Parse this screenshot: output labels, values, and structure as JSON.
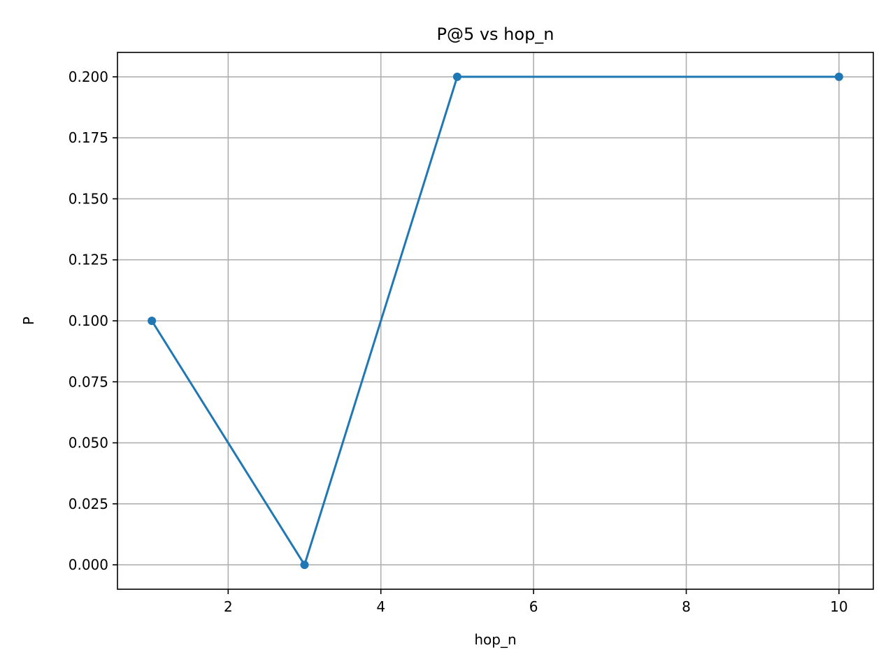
{
  "chart_data": {
    "type": "line",
    "title": "P@5 vs hop_n",
    "xlabel": "hop_n",
    "ylabel": "P",
    "xlim": [
      0.55,
      10.45
    ],
    "ylim": [
      -0.01,
      0.21
    ],
    "xticks": [
      2,
      4,
      6,
      8,
      10
    ],
    "xtick_labels": [
      "2",
      "4",
      "6",
      "8",
      "10"
    ],
    "yticks": [
      0.0,
      0.025,
      0.05,
      0.075,
      0.1,
      0.125,
      0.15,
      0.175,
      0.2
    ],
    "ytick_labels": [
      "0.000",
      "0.025",
      "0.050",
      "0.075",
      "0.100",
      "0.125",
      "0.150",
      "0.175",
      "0.200"
    ],
    "grid": true,
    "series": [
      {
        "x": [
          1,
          3,
          5,
          10
        ],
        "y": [
          0.1,
          0.0,
          0.2,
          0.2
        ],
        "color": "#1f77b4",
        "marker": "circle"
      }
    ]
  }
}
